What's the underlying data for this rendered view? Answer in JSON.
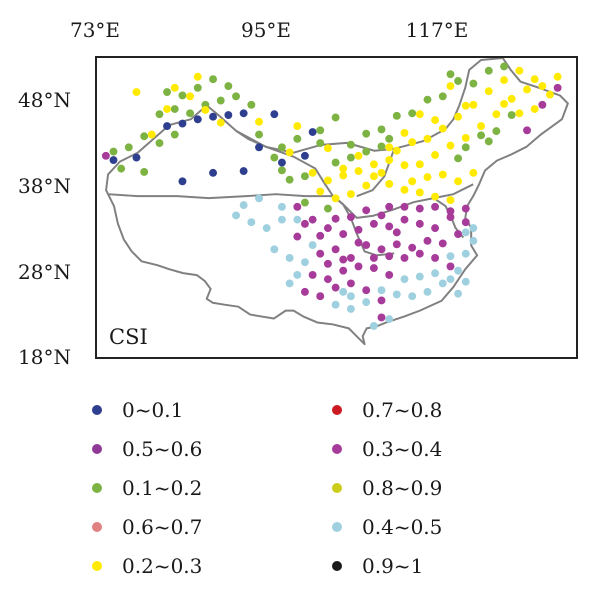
{
  "axes": {
    "lon_ticks": [
      "73°E",
      "95°E",
      "117°E"
    ],
    "lat_ticks": [
      "48°N",
      "38°N",
      "28°N",
      "18°N"
    ]
  },
  "panel_label": "CSI",
  "legend": [
    {
      "label": "0~0.1",
      "color": "#2e3f8f"
    },
    {
      "label": "0.7~0.8",
      "color": "#cc1a22"
    },
    {
      "label": "0.5~0.6",
      "color": "#8e3a96"
    },
    {
      "label": "0.3~0.4",
      "color": "#a63b9a"
    },
    {
      "label": "0.1~0.2",
      "color": "#7cb342"
    },
    {
      "label": "0.8~0.9",
      "color": "#cccc1a"
    },
    {
      "label": "0.6~0.7",
      "color": "#e08080"
    },
    {
      "label": "0.4~0.5",
      "color": "#9fd0e0"
    },
    {
      "label": "0.2~0.3",
      "color": "#ffea00"
    },
    {
      "label": "0.9~1",
      "color": "#1a1a1a"
    }
  ],
  "stations": {
    "0~0.1": [
      [
        82,
        42.5
      ],
      [
        84,
        42.8
      ],
      [
        86,
        43.3
      ],
      [
        88,
        43.6
      ],
      [
        90,
        43.8
      ],
      [
        92,
        44.0
      ],
      [
        96,
        43.9
      ],
      [
        101,
        41.8
      ],
      [
        94,
        40.0
      ],
      [
        92,
        37.2
      ],
      [
        88,
        37.0
      ],
      [
        75,
        38.5
      ],
      [
        78,
        38.8
      ],
      [
        84,
        36.0
      ],
      [
        97,
        38.2
      ],
      [
        100,
        39.0
      ]
    ],
    "0.1~0.2": [
      [
        75,
        39.5
      ],
      [
        77,
        40.0
      ],
      [
        79,
        41.3
      ],
      [
        81,
        40.5
      ],
      [
        83,
        41.5
      ],
      [
        85,
        44.0
      ],
      [
        87,
        45.0
      ],
      [
        89,
        45.5
      ],
      [
        91,
        46.0
      ],
      [
        93,
        45.0
      ],
      [
        86,
        47.0
      ],
      [
        88,
        48.0
      ],
      [
        97,
        40.0
      ],
      [
        99,
        41.0
      ],
      [
        102,
        40.5
      ],
      [
        104,
        38.2
      ],
      [
        106,
        38.8
      ],
      [
        108,
        39.5
      ],
      [
        110,
        40.1
      ],
      [
        111,
        41.0
      ],
      [
        112,
        43.7
      ],
      [
        114,
        44.0
      ],
      [
        116,
        45.6
      ],
      [
        118,
        46.0
      ],
      [
        120,
        47.8
      ],
      [
        122,
        47.5
      ],
      [
        124,
        49.0
      ],
      [
        126,
        49.5
      ],
      [
        100,
        36.6
      ],
      [
        98,
        36.2
      ],
      [
        97,
        37.3
      ],
      [
        96,
        38.8
      ],
      [
        94,
        41.5
      ],
      [
        102,
        42.0
      ],
      [
        104,
        43.5
      ],
      [
        106,
        40.3
      ],
      [
        108,
        41.6
      ],
      [
        110,
        42.1
      ],
      [
        81,
        43.9
      ],
      [
        83,
        44.5
      ],
      [
        76,
        37.5
      ],
      [
        79,
        37.1
      ],
      [
        82,
        46.5
      ],
      [
        84,
        46.1
      ],
      [
        90,
        47.2
      ],
      [
        100,
        33.5
      ],
      [
        103,
        32.8
      ],
      [
        119,
        48.6
      ],
      [
        123,
        41.4
      ],
      [
        124,
        40.7
      ],
      [
        125,
        41.9
      ],
      [
        127,
        43.8
      ],
      [
        121,
        40.0
      ],
      [
        120,
        38.7
      ]
    ],
    "0.2~0.3": [
      [
        80,
        41.5
      ],
      [
        82,
        44.5
      ],
      [
        85,
        46.0
      ],
      [
        87,
        44.4
      ],
      [
        89,
        42.9
      ],
      [
        94,
        43.0
      ],
      [
        98,
        39.4
      ],
      [
        101,
        37.0
      ],
      [
        103,
        36.1
      ],
      [
        105,
        37.5
      ],
      [
        107,
        37.2
      ],
      [
        109,
        38.0
      ],
      [
        111,
        38.5
      ],
      [
        113,
        37.9
      ],
      [
        115,
        38.0
      ],
      [
        117,
        39.1
      ],
      [
        119,
        40.2
      ],
      [
        121,
        41.1
      ],
      [
        123,
        42.5
      ],
      [
        125,
        43.9
      ],
      [
        127,
        45.7
      ],
      [
        129,
        46.8
      ],
      [
        131,
        47.2
      ],
      [
        133,
        48.3
      ],
      [
        130,
        44.5
      ],
      [
        128,
        44.0
      ],
      [
        126,
        45.1
      ],
      [
        124,
        46.6
      ],
      [
        122,
        45.0
      ],
      [
        120,
        43.6
      ],
      [
        118,
        42.2
      ],
      [
        116,
        41.0
      ],
      [
        114,
        40.6
      ],
      [
        112,
        39.6
      ],
      [
        110,
        37.0
      ],
      [
        108,
        35.5
      ],
      [
        106,
        34.5
      ],
      [
        104,
        34.0
      ],
      [
        102,
        34.8
      ],
      [
        114,
        36.0
      ],
      [
        116,
        36.5
      ],
      [
        118,
        36.8
      ],
      [
        120,
        36.0
      ],
      [
        122,
        37.0
      ],
      [
        115,
        34.7
      ],
      [
        117,
        34.2
      ],
      [
        119,
        33.8
      ],
      [
        113,
        35.0
      ],
      [
        111,
        35.7
      ],
      [
        109,
        36.6
      ],
      [
        126,
        47.9
      ],
      [
        128,
        49.0
      ],
      [
        130,
        48.0
      ],
      [
        132,
        46.2
      ],
      [
        121,
        44.9
      ],
      [
        119,
        47.2
      ],
      [
        117,
        43.2
      ],
      [
        115,
        43.9
      ],
      [
        113,
        41.7
      ],
      [
        111,
        40.0
      ],
      [
        107,
        39.0
      ],
      [
        105,
        36.7
      ],
      [
        103,
        39.9
      ],
      [
        99,
        42.5
      ],
      [
        83,
        47.0
      ],
      [
        86,
        48.3
      ],
      [
        78,
        46.5
      ]
    ],
    "0.3~0.4": [
      [
        74,
        39.0
      ],
      [
        99,
        33.0
      ],
      [
        101,
        31.5
      ],
      [
        103,
        30.5
      ],
      [
        105,
        29.8
      ],
      [
        107,
        30.3
      ],
      [
        109,
        31.0
      ],
      [
        111,
        30.7
      ],
      [
        113,
        31.5
      ],
      [
        115,
        31.0
      ],
      [
        117,
        30.5
      ],
      [
        119,
        31.8
      ],
      [
        121,
        31.2
      ],
      [
        104,
        28.0
      ],
      [
        106,
        27.0
      ],
      [
        108,
        28.5
      ],
      [
        110,
        28.0
      ],
      [
        112,
        28.6
      ],
      [
        114,
        28.2
      ],
      [
        116,
        29.0
      ],
      [
        118,
        28.7
      ],
      [
        120,
        29.8
      ],
      [
        101,
        25.0
      ],
      [
        103,
        24.5
      ],
      [
        105,
        25.5
      ],
      [
        107,
        26.0
      ],
      [
        109,
        25.8
      ],
      [
        111,
        25.0
      ],
      [
        100,
        23.0
      ],
      [
        102,
        22.5
      ],
      [
        104,
        23.5
      ],
      [
        106,
        24.0
      ],
      [
        108,
        23.2
      ],
      [
        110,
        22.0
      ],
      [
        110,
        20.0
      ],
      [
        113,
        27.0
      ],
      [
        115,
        27.5
      ],
      [
        117,
        27.0
      ],
      [
        119,
        26.0
      ],
      [
        129,
        42.0
      ],
      [
        131,
        45.0
      ],
      [
        133,
        47.0
      ],
      [
        99,
        29.5
      ],
      [
        102,
        27.5
      ],
      [
        111,
        33.0
      ],
      [
        113,
        33.0
      ],
      [
        115,
        32.8
      ],
      [
        117,
        33.0
      ],
      [
        119,
        32.5
      ],
      [
        121,
        32.8
      ],
      [
        104,
        31.6
      ],
      [
        106,
        31.8
      ],
      [
        108,
        32.6
      ],
      [
        110,
        32.0
      ],
      [
        112,
        30.0
      ],
      [
        103,
        26.3
      ],
      [
        105,
        26.8
      ],
      [
        109,
        27.0
      ],
      [
        111,
        27.2
      ],
      [
        107,
        28.8
      ],
      [
        102,
        29.6
      ],
      [
        100,
        31.0
      ]
    ],
    "0.4~0.5": [
      [
        91,
        32.0
      ],
      [
        93,
        31.2
      ],
      [
        95,
        30.5
      ],
      [
        97,
        31.5
      ],
      [
        99,
        31.5
      ],
      [
        96,
        28.0
      ],
      [
        98,
        27.0
      ],
      [
        99,
        25.0
      ],
      [
        100,
        26.5
      ],
      [
        101,
        28.5
      ],
      [
        98,
        24.0
      ],
      [
        112,
        22.7
      ],
      [
        114,
        22.5
      ],
      [
        116,
        23.0
      ],
      [
        118,
        24.0
      ],
      [
        120,
        25.5
      ],
      [
        121,
        27.5
      ],
      [
        122,
        29.0
      ],
      [
        117,
        25.2
      ],
      [
        119,
        27.2
      ],
      [
        113,
        24.5
      ],
      [
        115,
        24.8
      ],
      [
        110,
        23.2
      ],
      [
        108,
        21.8
      ],
      [
        109,
        19.0
      ],
      [
        111,
        19.8
      ],
      [
        106,
        22.5
      ],
      [
        105,
        23.0
      ],
      [
        122,
        30.5
      ],
      [
        121,
        30.0
      ],
      [
        92,
        33.2
      ],
      [
        94,
        34.0
      ],
      [
        97,
        33.0
      ],
      [
        119,
        24.5
      ],
      [
        104,
        21.5
      ],
      [
        106,
        21.0
      ],
      [
        120,
        22.8
      ],
      [
        121,
        24.2
      ]
    ]
  }
}
